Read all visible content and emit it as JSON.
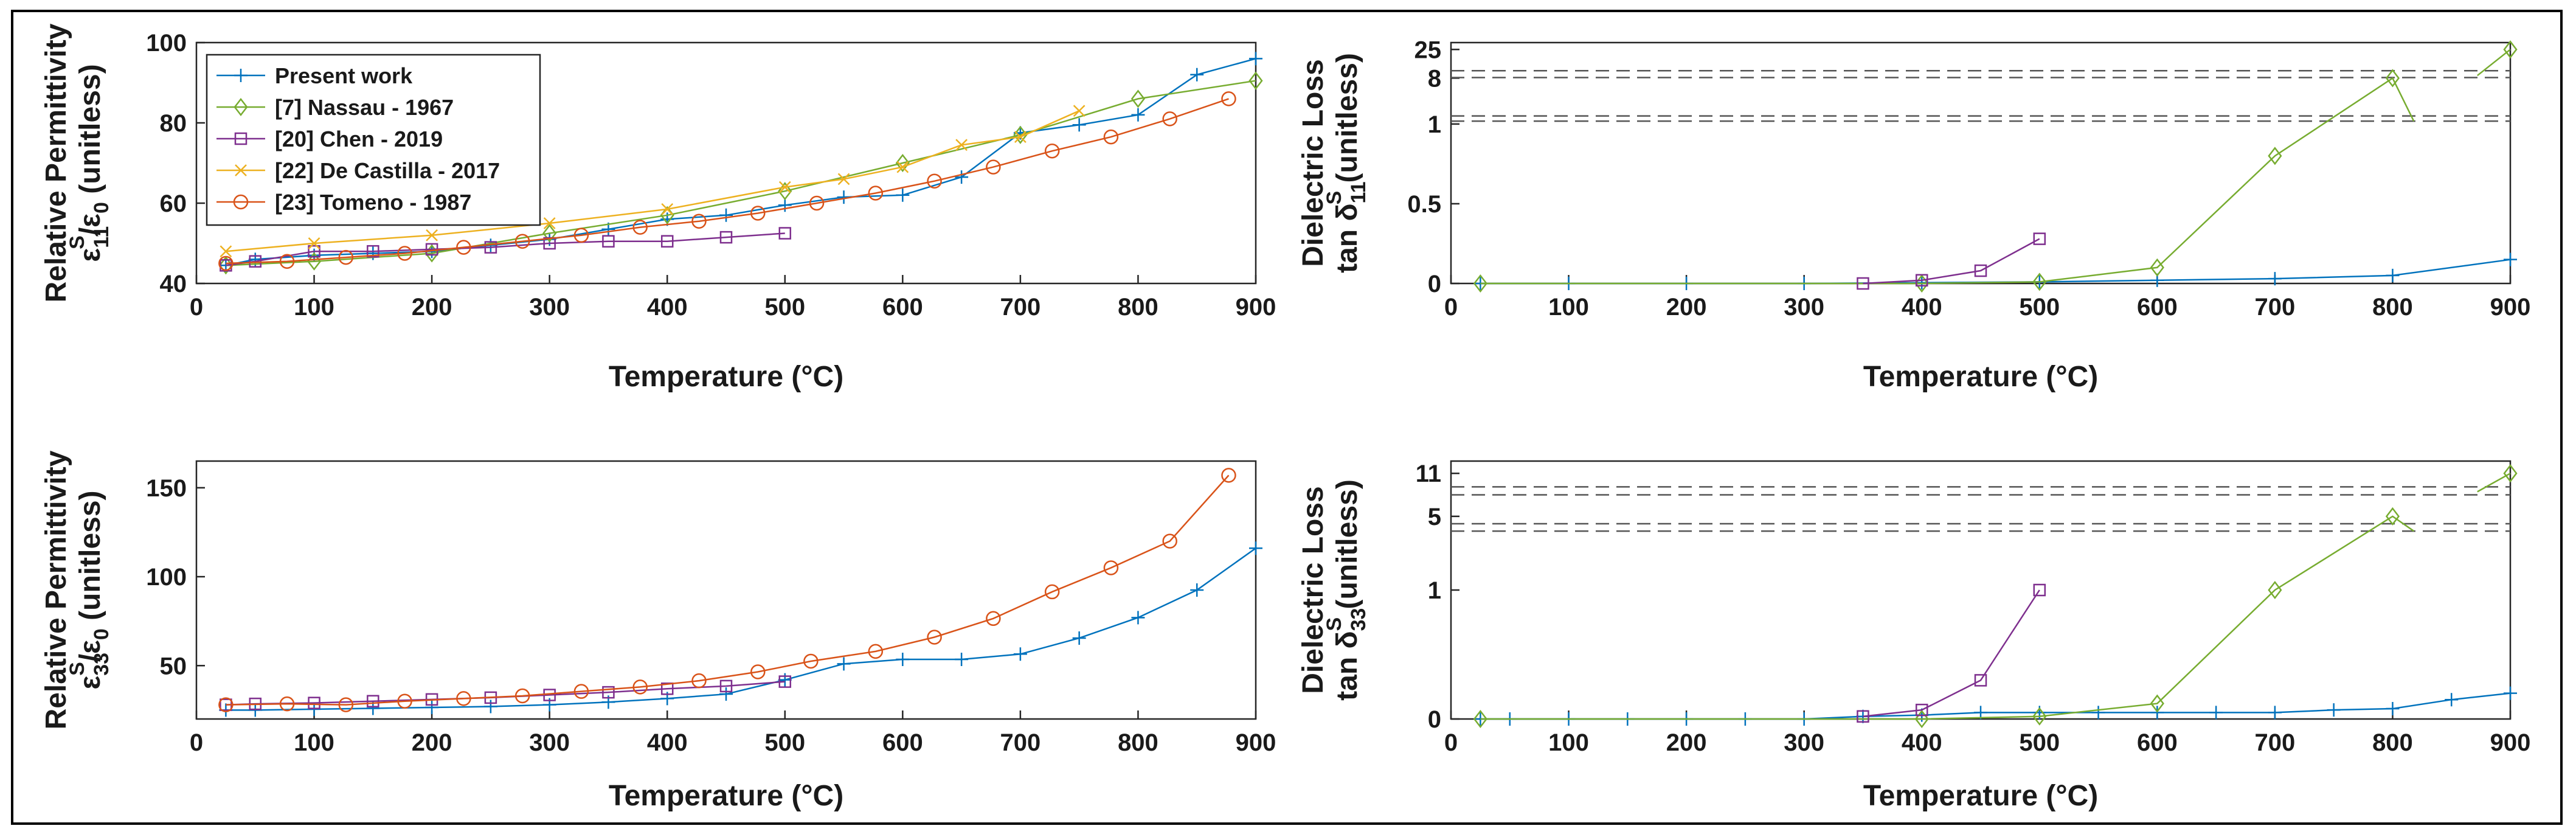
{
  "colors": {
    "present": "#0072BD",
    "nassau": "#77AC30",
    "chen": "#7E2F8E",
    "castilla": "#EDB120",
    "tomeno": "#D95319"
  },
  "chart_data": [
    {
      "id": "eps11",
      "type": "line",
      "title": "",
      "xlabel": "Temperature (°C)",
      "ylabel_line1": "Relative Permittivity",
      "ylabel_line2": "ε_11^S/ε_0 (unitless)",
      "xlim": [
        0,
        900
      ],
      "ylim": [
        40,
        100
      ],
      "xticks": [
        0,
        100,
        200,
        300,
        400,
        500,
        600,
        700,
        800,
        900
      ],
      "yticks": [
        40,
        60,
        80,
        100
      ],
      "legend": {
        "location": "top-left",
        "entries": [
          "Present work",
          "[7] Nassau - 1967",
          "[20] Chen - 2019",
          "[22] De Castilla - 2017",
          "[23] Tomeno - 1987"
        ]
      },
      "series": [
        {
          "name": "Present work",
          "color_key": "present",
          "marker": "plus",
          "x": [
            25,
            50,
            100,
            150,
            200,
            250,
            300,
            350,
            400,
            450,
            500,
            550,
            600,
            650,
            700,
            750,
            800,
            850,
            900
          ],
          "y": [
            44.5,
            46,
            47,
            47.5,
            48,
            49.5,
            51,
            53.5,
            56,
            57,
            59.5,
            61.5,
            62,
            66.5,
            77.5,
            79.5,
            82,
            92,
            96
          ]
        },
        {
          "name": "[7] Nassau - 1967",
          "color_key": "nassau",
          "marker": "diamond",
          "x": [
            25,
            100,
            200,
            300,
            400,
            500,
            600,
            700,
            800,
            900
          ],
          "y": [
            44.5,
            45.5,
            47.5,
            52.5,
            57,
            63,
            70,
            77,
            86,
            90.5
          ]
        },
        {
          "name": "[20] Chen - 2019",
          "color_key": "chen",
          "marker": "square",
          "x": [
            25,
            50,
            100,
            150,
            200,
            250,
            300,
            350,
            400,
            450,
            500
          ],
          "y": [
            44.5,
            45.5,
            48,
            48,
            48.5,
            49,
            50,
            50.5,
            50.5,
            51.5,
            52.5
          ]
        },
        {
          "name": "[22] De Castilla - 2017",
          "color_key": "castilla",
          "marker": "x",
          "x": [
            25,
            100,
            200,
            300,
            400,
            500,
            550,
            600,
            650,
            700,
            750
          ],
          "y": [
            48,
            50,
            52,
            55,
            58.5,
            64,
            66,
            69,
            74.5,
            76.5,
            83
          ]
        },
        {
          "name": "[23] Tomeno - 1987",
          "color_key": "tomeno",
          "marker": "circle",
          "x": [
            25,
            77,
            127,
            177,
            227,
            277,
            327,
            377,
            427,
            477,
            527,
            577,
            627,
            677,
            727,
            777,
            827,
            877
          ],
          "y": [
            45,
            45.5,
            46.5,
            47.5,
            49,
            50.5,
            52,
            54,
            55.5,
            57.5,
            60,
            62.5,
            65.5,
            69,
            73,
            76.5,
            81,
            86
          ]
        }
      ]
    },
    {
      "id": "loss11",
      "type": "line",
      "title": "",
      "xlabel": "Temperature (°C)",
      "ylabel_line1": "Dielectric Loss",
      "ylabel_line2": "tan δ_11^S (unitless)",
      "xlim": [
        0,
        900
      ],
      "broken_axis": true,
      "ytick_labels": [
        "0",
        "0.5",
        "1",
        "8",
        "25"
      ],
      "xticks": [
        0,
        100,
        200,
        300,
        400,
        500,
        600,
        700,
        800,
        900
      ],
      "series": [
        {
          "name": "Present work",
          "color_key": "present",
          "marker": "plus",
          "x": [
            25,
            100,
            200,
            300,
            400,
            500,
            600,
            700,
            800,
            900
          ],
          "y": [
            0,
            0,
            0,
            0,
            0.005,
            0.01,
            0.02,
            0.03,
            0.05,
            0.15
          ]
        },
        {
          "name": "[7] Nassau - 1967",
          "color_key": "nassau",
          "marker": "diamond",
          "x": [
            25,
            400,
            500,
            600,
            700,
            800,
            900
          ],
          "y": [
            0,
            0,
            0.01,
            0.1,
            0.8,
            8,
            25
          ]
        },
        {
          "name": "[20] Chen - 2019",
          "color_key": "chen",
          "marker": "square",
          "x": [
            350,
            400,
            450,
            500
          ],
          "y": [
            0,
            0.02,
            0.08,
            0.28
          ]
        }
      ]
    },
    {
      "id": "eps33",
      "type": "line",
      "title": "",
      "xlabel": "Temperature (°C)",
      "ylabel_line1": "Relative Permittivity",
      "ylabel_line2": "ε_33^S/ε_0 (unitless)",
      "xlim": [
        0,
        900
      ],
      "ylim": [
        20,
        165
      ],
      "xticks": [
        0,
        100,
        200,
        300,
        400,
        500,
        600,
        700,
        800,
        900
      ],
      "yticks": [
        50,
        100,
        150
      ],
      "series": [
        {
          "name": "Present work",
          "color_key": "present",
          "marker": "plus",
          "x": [
            25,
            50,
            100,
            150,
            200,
            250,
            300,
            350,
            400,
            450,
            500,
            550,
            600,
            650,
            700,
            750,
            800,
            850,
            900
          ],
          "y": [
            25,
            25,
            25.5,
            26,
            26.5,
            27,
            28,
            29.5,
            31.5,
            34,
            42,
            51,
            53.5,
            53.5,
            56.5,
            65.5,
            77,
            92.5,
            116
          ]
        },
        {
          "name": "[20] Chen - 2019",
          "color_key": "chen",
          "marker": "square",
          "x": [
            25,
            50,
            100,
            150,
            200,
            250,
            300,
            350,
            400,
            450,
            500
          ],
          "y": [
            28,
            28.5,
            29,
            30,
            31,
            32,
            33.5,
            35,
            37,
            38.5,
            41
          ]
        },
        {
          "name": "[23] Tomeno - 1987",
          "color_key": "tomeno",
          "marker": "circle",
          "x": [
            25,
            77,
            127,
            177,
            227,
            277,
            327,
            377,
            427,
            477,
            522,
            577,
            627,
            677,
            727,
            777,
            827,
            877
          ],
          "y": [
            28,
            28.5,
            28,
            30,
            31.5,
            33,
            35.5,
            38,
            41.5,
            46.5,
            52.5,
            58,
            66,
            76.5,
            91.5,
            105,
            120,
            157
          ]
        }
      ]
    },
    {
      "id": "loss33",
      "type": "line",
      "title": "",
      "xlabel": "Temperature (°C)",
      "ylabel_line1": "Dielectric Loss",
      "ylabel_line2": "tan δ_33^S (unitless)",
      "xlim": [
        0,
        900
      ],
      "broken_axis": true,
      "ytick_labels": [
        "0",
        "1",
        "5",
        "11"
      ],
      "xticks": [
        0,
        100,
        200,
        300,
        400,
        500,
        600,
        700,
        800,
        900
      ],
      "series": [
        {
          "name": "Present work",
          "color_key": "present",
          "marker": "plus",
          "x": [
            25,
            50,
            100,
            150,
            200,
            250,
            300,
            350,
            400,
            450,
            500,
            550,
            600,
            650,
            700,
            750,
            800,
            850,
            900
          ],
          "y": [
            0,
            0,
            0,
            0,
            0,
            0,
            0,
            0.02,
            0.03,
            0.05,
            0.05,
            0.05,
            0.05,
            0.05,
            0.05,
            0.07,
            0.08,
            0.15,
            0.2
          ]
        },
        {
          "name": "[7] Nassau - 1967",
          "color_key": "nassau",
          "marker": "diamond",
          "x": [
            25,
            400,
            500,
            600,
            700,
            800,
            900
          ],
          "y": [
            0,
            0,
            0.02,
            0.12,
            1,
            5,
            11
          ]
        },
        {
          "name": "[20] Chen - 2019",
          "color_key": "chen",
          "marker": "square",
          "x": [
            350,
            400,
            450,
            500
          ],
          "y": [
            0.02,
            0.07,
            0.3,
            1
          ]
        }
      ]
    }
  ]
}
